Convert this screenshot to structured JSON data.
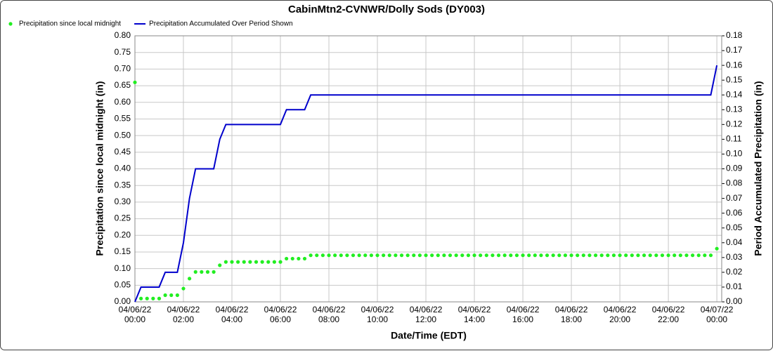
{
  "chart_data": {
    "type": "line",
    "title": "CabinMtn2-CVNWR/Dolly Sods (DY003)",
    "xlabel": "Date/Time (EDT)",
    "ylabel": "Precipitation since local midnight (in)",
    "y2label": "Period Accumulated Precipitation (in)",
    "x": [
      "04/06/22 00:00",
      "04/06/22 00:15",
      "04/06/22 00:30",
      "04/06/22 00:45",
      "04/06/22 01:00",
      "04/06/22 01:15",
      "04/06/22 01:30",
      "04/06/22 01:45",
      "04/06/22 02:00",
      "04/06/22 02:15",
      "04/06/22 02:30",
      "04/06/22 02:45",
      "04/06/22 03:00",
      "04/06/22 03:15",
      "04/06/22 03:30",
      "04/06/22 03:45",
      "04/06/22 04:00",
      "04/06/22 04:15",
      "04/06/22 04:30",
      "04/06/22 04:45",
      "04/06/22 05:00",
      "04/06/22 05:15",
      "04/06/22 05:30",
      "04/06/22 05:45",
      "04/06/22 06:00",
      "04/06/22 06:15",
      "04/06/22 06:30",
      "04/06/22 06:45",
      "04/06/22 07:00",
      "04/06/22 07:15",
      "04/06/22 07:30",
      "04/06/22 07:45",
      "04/06/22 08:00",
      "04/06/22 08:15",
      "04/06/22 08:30",
      "04/06/22 08:45",
      "04/06/22 09:00",
      "04/06/22 09:15",
      "04/06/22 09:30",
      "04/06/22 09:45",
      "04/06/22 10:00",
      "04/06/22 10:15",
      "04/06/22 10:30",
      "04/06/22 10:45",
      "04/06/22 11:00",
      "04/06/22 11:15",
      "04/06/22 11:30",
      "04/06/22 11:45",
      "04/06/22 12:00",
      "04/06/22 12:15",
      "04/06/22 12:30",
      "04/06/22 12:45",
      "04/06/22 13:00",
      "04/06/22 13:15",
      "04/06/22 13:30",
      "04/06/22 13:45",
      "04/06/22 14:00",
      "04/06/22 14:15",
      "04/06/22 14:30",
      "04/06/22 14:45",
      "04/06/22 15:00",
      "04/06/22 15:15",
      "04/06/22 15:30",
      "04/06/22 15:45",
      "04/06/22 16:00",
      "04/06/22 16:15",
      "04/06/22 16:30",
      "04/06/22 16:45",
      "04/06/22 17:00",
      "04/06/22 17:15",
      "04/06/22 17:30",
      "04/06/22 17:45",
      "04/06/22 18:00",
      "04/06/22 18:15",
      "04/06/22 18:30",
      "04/06/22 18:45",
      "04/06/22 19:00",
      "04/06/22 19:15",
      "04/06/22 19:30",
      "04/06/22 19:45",
      "04/06/22 20:00",
      "04/06/22 20:15",
      "04/06/22 20:30",
      "04/06/22 20:45",
      "04/06/22 21:00",
      "04/06/22 21:15",
      "04/06/22 21:30",
      "04/06/22 21:45",
      "04/06/22 22:00",
      "04/06/22 22:15",
      "04/06/22 22:30",
      "04/06/22 22:45",
      "04/06/22 23:00",
      "04/06/22 23:15",
      "04/06/22 23:30",
      "04/06/22 23:45",
      "04/07/22 00:00"
    ],
    "series": [
      {
        "name": "Precipitation since local midnight",
        "color": "#22ee22",
        "style": "markers",
        "values": [
          0.66,
          0.01,
          0.01,
          0.01,
          0.01,
          0.02,
          0.02,
          0.02,
          0.04,
          0.07,
          0.09,
          0.09,
          0.09,
          0.09,
          0.11,
          0.12,
          0.12,
          0.12,
          0.12,
          0.12,
          0.12,
          0.12,
          0.12,
          0.12,
          0.12,
          0.13,
          0.13,
          0.13,
          0.13,
          0.14,
          0.14,
          0.14,
          0.14,
          0.14,
          0.14,
          0.14,
          0.14,
          0.14,
          0.14,
          0.14,
          0.14,
          0.14,
          0.14,
          0.14,
          0.14,
          0.14,
          0.14,
          0.14,
          0.14,
          0.14,
          0.14,
          0.14,
          0.14,
          0.14,
          0.14,
          0.14,
          0.14,
          0.14,
          0.14,
          0.14,
          0.14,
          0.14,
          0.14,
          0.14,
          0.14,
          0.14,
          0.14,
          0.14,
          0.14,
          0.14,
          0.14,
          0.14,
          0.14,
          0.14,
          0.14,
          0.14,
          0.14,
          0.14,
          0.14,
          0.14,
          0.14,
          0.14,
          0.14,
          0.14,
          0.14,
          0.14,
          0.14,
          0.14,
          0.14,
          0.14,
          0.14,
          0.14,
          0.14,
          0.14,
          0.14,
          0.14,
          0.16
        ]
      },
      {
        "name": "Precipitation Accumulated Over Period Shown",
        "color": "#0000cc",
        "style": "line",
        "axis": "y2",
        "values": [
          0,
          0.01,
          0.01,
          0.01,
          0.01,
          0.02,
          0.02,
          0.02,
          0.04,
          0.07,
          0.09,
          0.09,
          0.09,
          0.09,
          0.11,
          0.12,
          0.12,
          0.12,
          0.12,
          0.12,
          0.12,
          0.12,
          0.12,
          0.12,
          0.12,
          0.13,
          0.13,
          0.13,
          0.13,
          0.14,
          0.14,
          0.14,
          0.14,
          0.14,
          0.14,
          0.14,
          0.14,
          0.14,
          0.14,
          0.14,
          0.14,
          0.14,
          0.14,
          0.14,
          0.14,
          0.14,
          0.14,
          0.14,
          0.14,
          0.14,
          0.14,
          0.14,
          0.14,
          0.14,
          0.14,
          0.14,
          0.14,
          0.14,
          0.14,
          0.14,
          0.14,
          0.14,
          0.14,
          0.14,
          0.14,
          0.14,
          0.14,
          0.14,
          0.14,
          0.14,
          0.14,
          0.14,
          0.14,
          0.14,
          0.14,
          0.14,
          0.14,
          0.14,
          0.14,
          0.14,
          0.14,
          0.14,
          0.14,
          0.14,
          0.14,
          0.14,
          0.14,
          0.14,
          0.14,
          0.14,
          0.14,
          0.14,
          0.14,
          0.14,
          0.14,
          0.14,
          0.16
        ]
      }
    ],
    "xlim": [
      "04/06/22 00:00",
      "04/07/22 00:12"
    ],
    "xticks": [
      {
        "value": "04/06/22 00:00",
        "label": [
          "04/06/22",
          "00:00"
        ]
      },
      {
        "value": "04/06/22 02:00",
        "label": [
          "04/06/22",
          "02:00"
        ]
      },
      {
        "value": "04/06/22 04:00",
        "label": [
          "04/06/22",
          "04:00"
        ]
      },
      {
        "value": "04/06/22 06:00",
        "label": [
          "04/06/22",
          "06:00"
        ]
      },
      {
        "value": "04/06/22 08:00",
        "label": [
          "04/06/22",
          "08:00"
        ]
      },
      {
        "value": "04/06/22 10:00",
        "label": [
          "04/06/22",
          "10:00"
        ]
      },
      {
        "value": "04/06/22 12:00",
        "label": [
          "04/06/22",
          "12:00"
        ]
      },
      {
        "value": "04/06/22 14:00",
        "label": [
          "04/06/22",
          "14:00"
        ]
      },
      {
        "value": "04/06/22 16:00",
        "label": [
          "04/06/22",
          "16:00"
        ]
      },
      {
        "value": "04/06/22 18:00",
        "label": [
          "04/06/22",
          "18:00"
        ]
      },
      {
        "value": "04/06/22 20:00",
        "label": [
          "04/06/22",
          "20:00"
        ]
      },
      {
        "value": "04/06/22 22:00",
        "label": [
          "04/06/22",
          "22:00"
        ]
      },
      {
        "value": "04/07/22 00:00",
        "label": [
          "04/07/22",
          "00:00"
        ]
      }
    ],
    "ylim": [
      0,
      0.8
    ],
    "yticks": [
      {
        "value": 0,
        "label": "0.00"
      },
      {
        "value": 0.05,
        "label": "0.05"
      },
      {
        "value": 0.1,
        "label": "0.10"
      },
      {
        "value": 0.15,
        "label": "0.15"
      },
      {
        "value": 0.2,
        "label": "0.20"
      },
      {
        "value": 0.25,
        "label": "0.25"
      },
      {
        "value": 0.3,
        "label": "0.30"
      },
      {
        "value": 0.35,
        "label": "0.35"
      },
      {
        "value": 0.4,
        "label": "0.40"
      },
      {
        "value": 0.45,
        "label": "0.45"
      },
      {
        "value": 0.5,
        "label": "0.50"
      },
      {
        "value": 0.55,
        "label": "0.55"
      },
      {
        "value": 0.6,
        "label": "0.60"
      },
      {
        "value": 0.65,
        "label": "0.65"
      },
      {
        "value": 0.7,
        "label": "0.70"
      },
      {
        "value": 0.75,
        "label": "0.75"
      },
      {
        "value": 0.8,
        "label": "0.80"
      }
    ],
    "y2lim": [
      0,
      0.18
    ],
    "y2ticks": [
      {
        "value": 0,
        "label": "0.00"
      },
      {
        "value": 0.01,
        "label": "0.01"
      },
      {
        "value": 0.02,
        "label": "0.02"
      },
      {
        "value": 0.03,
        "label": "0.03"
      },
      {
        "value": 0.04,
        "label": "0.04"
      },
      {
        "value": 0.05,
        "label": "0.05"
      },
      {
        "value": 0.06,
        "label": "0.06"
      },
      {
        "value": 0.07,
        "label": "0.07"
      },
      {
        "value": 0.08,
        "label": "0.08"
      },
      {
        "value": 0.09,
        "label": "0.09"
      },
      {
        "value": 0.1,
        "label": "0.10"
      },
      {
        "value": 0.11,
        "label": "0.11"
      },
      {
        "value": 0.12,
        "label": "0.12"
      },
      {
        "value": 0.13,
        "label": "0.13"
      },
      {
        "value": 0.14,
        "label": "0.14"
      },
      {
        "value": 0.15,
        "label": "0.15"
      },
      {
        "value": 0.16,
        "label": "0.16"
      },
      {
        "value": 0.17,
        "label": "0.17"
      },
      {
        "value": 0.18,
        "label": "0.18"
      }
    ],
    "grid": true,
    "legend": "top-left"
  }
}
